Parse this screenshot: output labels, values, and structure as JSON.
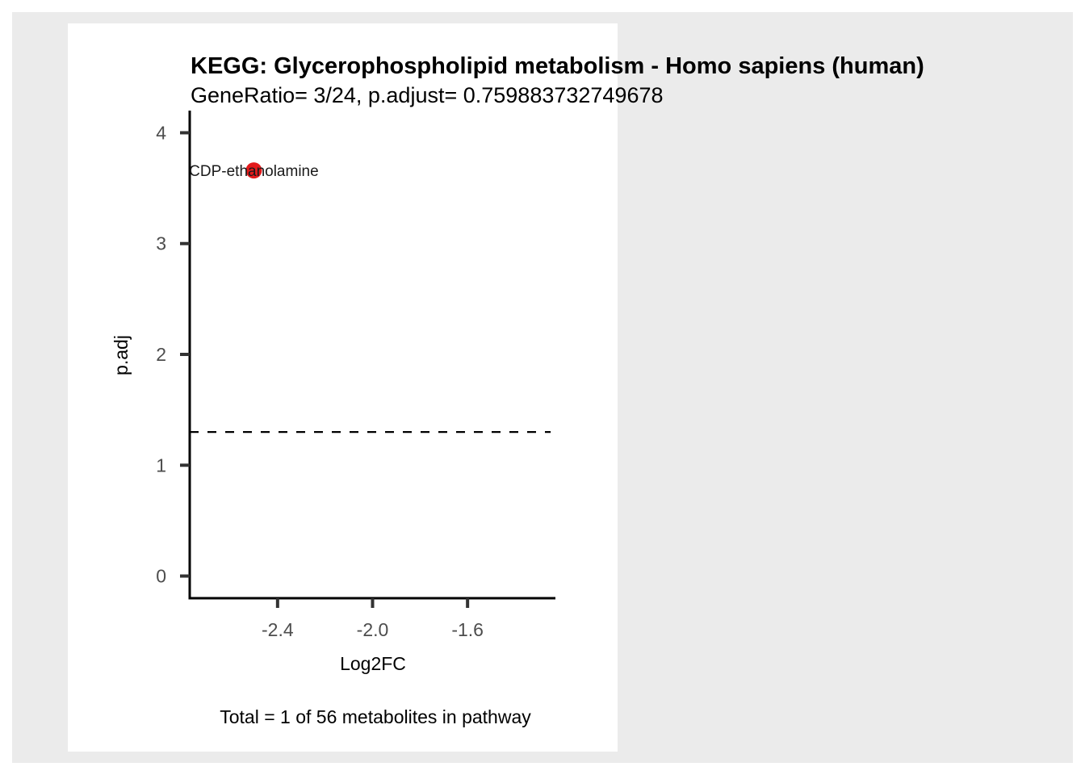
{
  "chart_data": {
    "type": "scatter",
    "title": "KEGG: Glycerophospholipid metabolism - Homo sapiens (human)",
    "subtitle": "GeneRatio= 3/24, p.adjust= 0.759883732749678",
    "xlabel": "Log2FC",
    "ylabel": "p.adj",
    "caption": "Total = 1 of 56 metabolites in pathway",
    "xlim": [
      -2.77,
      -1.23
    ],
    "ylim": [
      -0.2,
      4.2
    ],
    "x_ticks": [
      -2.4,
      -2.0,
      -1.6
    ],
    "x_tick_labels": [
      "-2.4",
      "-2.0",
      "-1.6"
    ],
    "y_ticks": [
      0,
      1,
      2,
      3,
      4
    ],
    "y_tick_labels": [
      "0",
      "1",
      "2",
      "3",
      "4"
    ],
    "threshold_line": {
      "y": 1.3,
      "style": "dashed",
      "x_end": -1.25
    },
    "points": [
      {
        "x": -2.5,
        "y": 3.66,
        "label": "CDP-ethanolamine"
      }
    ],
    "point_color": "#e31a1c",
    "grid": false,
    "legend": "none"
  }
}
